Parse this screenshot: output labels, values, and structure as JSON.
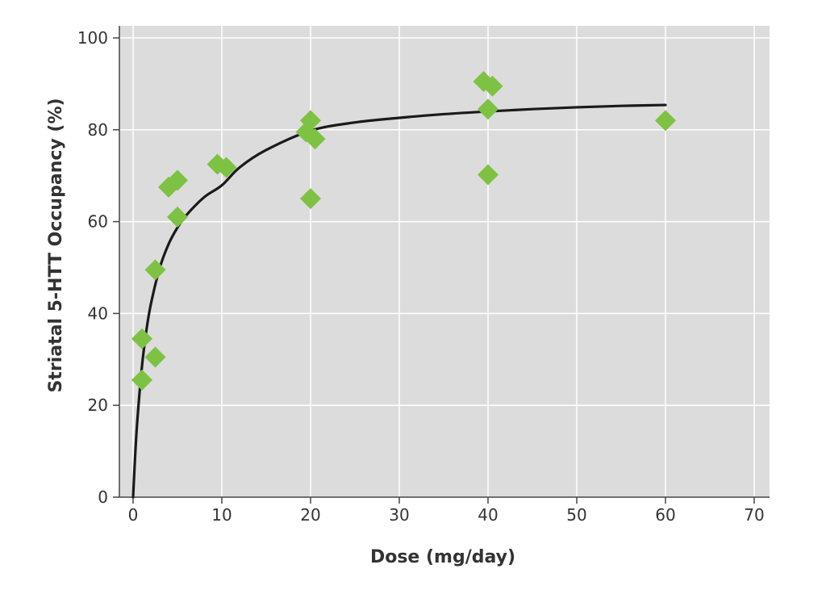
{
  "chart_data": {
    "type": "scatter",
    "xlabel": "Dose (mg/day)",
    "ylabel": "Striatal 5-HTT Occupancy (%)",
    "xlim": [
      0,
      70
    ],
    "ylim": [
      0,
      100
    ],
    "x_ticks": [
      "0",
      "10",
      "20",
      "30",
      "40",
      "50",
      "60",
      "70"
    ],
    "y_ticks": [
      "0",
      "20",
      "40",
      "60",
      "80",
      "100"
    ],
    "grid": true,
    "colors": {
      "background": "#dcdcdc",
      "grid": "#ffffff",
      "marker": "#7dc242",
      "curve": "#1a1a1a"
    },
    "series": [
      {
        "type": "scatter",
        "marker": "diamond",
        "points": [
          {
            "x": 1,
            "y": 25.5
          },
          {
            "x": 1,
            "y": 34.5
          },
          {
            "x": 2.5,
            "y": 30.5
          },
          {
            "x": 2.5,
            "y": 49.5
          },
          {
            "x": 4,
            "y": 67.5
          },
          {
            "x": 5,
            "y": 61
          },
          {
            "x": 5,
            "y": 69
          },
          {
            "x": 9.5,
            "y": 72.5
          },
          {
            "x": 10.5,
            "y": 71.8
          },
          {
            "x": 19.5,
            "y": 79.5
          },
          {
            "x": 20,
            "y": 82
          },
          {
            "x": 20,
            "y": 65
          },
          {
            "x": 20.5,
            "y": 78
          },
          {
            "x": 39.5,
            "y": 90.5
          },
          {
            "x": 40.5,
            "y": 89.5
          },
          {
            "x": 40,
            "y": 84.5
          },
          {
            "x": 40,
            "y": 70.2
          },
          {
            "x": 60,
            "y": 82
          }
        ]
      },
      {
        "type": "line",
        "smooth": true,
        "points": [
          {
            "x": 0,
            "y": 0
          },
          {
            "x": 0.25,
            "y": 9.7
          },
          {
            "x": 0.5,
            "y": 17.3
          },
          {
            "x": 1,
            "y": 28.5
          },
          {
            "x": 1.5,
            "y": 36.3
          },
          {
            "x": 2,
            "y": 42.0
          },
          {
            "x": 3,
            "y": 49.9
          },
          {
            "x": 4,
            "y": 55.1
          },
          {
            "x": 5,
            "y": 58.7
          },
          {
            "x": 6,
            "y": 61.4
          },
          {
            "x": 8,
            "y": 65.3
          },
          {
            "x": 10,
            "y": 67.9
          },
          {
            "x": 12,
            "y": 71.8
          },
          {
            "x": 15,
            "y": 75.6
          },
          {
            "x": 20,
            "y": 79.8
          },
          {
            "x": 25,
            "y": 81.6
          },
          {
            "x": 30,
            "y": 82.6
          },
          {
            "x": 35,
            "y": 83.4
          },
          {
            "x": 40,
            "y": 84.0
          },
          {
            "x": 45,
            "y": 84.5
          },
          {
            "x": 50,
            "y": 84.9
          },
          {
            "x": 55,
            "y": 85.2
          },
          {
            "x": 60,
            "y": 85.4
          }
        ]
      }
    ]
  }
}
